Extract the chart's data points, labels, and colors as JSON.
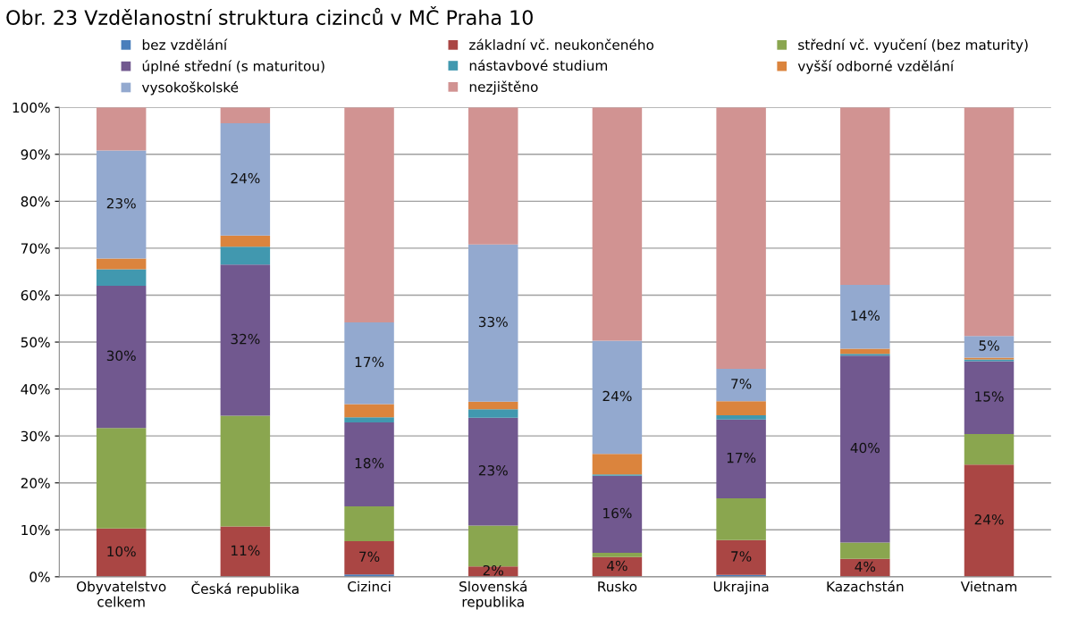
{
  "chart_data": {
    "type": "bar",
    "stacked": true,
    "title": "Obr. 23 Vzdělanostní struktura cizinců v MČ Praha 10",
    "categories": [
      "Obyvatelstvo\ncelkem",
      "Česká republika",
      "Cizinci",
      "Slovenská\nrepublika",
      "Rusko",
      "Ukrajina",
      "Kazachstán",
      "Vietnam"
    ],
    "series": [
      {
        "name": "bez vzdělání",
        "color": "#4a7ebb",
        "values": [
          0,
          0,
          0.5,
          0,
          0,
          0.4,
          0,
          0
        ],
        "value_labels": [
          null,
          null,
          null,
          null,
          null,
          null,
          null,
          null
        ]
      },
      {
        "name": "základní vč. neukončeného",
        "color": "#aa4644",
        "values": [
          10.3,
          10.7,
          7.1,
          2.2,
          4.2,
          7.4,
          3.8,
          23.9
        ],
        "value_labels": [
          "10%",
          "11%",
          "7%",
          "2%",
          "4%",
          "7%",
          "4%",
          "24%"
        ]
      },
      {
        "name": "střední vč. vyučení (bez maturity)",
        "color": "#8aa64f",
        "values": [
          21.4,
          23.6,
          7.4,
          8.7,
          0.9,
          8.9,
          3.5,
          6.5
        ],
        "value_labels": [
          null,
          null,
          null,
          null,
          null,
          null,
          null,
          null
        ]
      },
      {
        "name": "úplné střední (s maturitou)",
        "color": "#71588f",
        "values": [
          30.3,
          32.2,
          17.9,
          23.0,
          16.4,
          16.8,
          39.8,
          15.5
        ],
        "value_labels": [
          "30%",
          "32%",
          "18%",
          "23%",
          "16%",
          "17%",
          "40%",
          "15%"
        ]
      },
      {
        "name": "nástavbové studium",
        "color": "#4198af",
        "values": [
          3.5,
          3.8,
          1.1,
          1.8,
          0.3,
          0.9,
          0.4,
          0.4
        ],
        "value_labels": [
          null,
          null,
          null,
          null,
          null,
          null,
          null,
          null
        ]
      },
      {
        "name": "vyšší odborné vzdělání",
        "color": "#db843d",
        "values": [
          2.3,
          2.4,
          2.8,
          1.6,
          4.4,
          3.0,
          1.1,
          0.4
        ],
        "value_labels": [
          null,
          null,
          null,
          null,
          null,
          null,
          null,
          null
        ]
      },
      {
        "name": "vysokoškolské",
        "color": "#93a9cf",
        "values": [
          23.0,
          23.9,
          17.4,
          33.5,
          24.1,
          6.9,
          13.6,
          4.6
        ],
        "value_labels": [
          "23%",
          "24%",
          "17%",
          "33%",
          "24%",
          "7%",
          "14%",
          "5%"
        ]
      },
      {
        "name": "nezjištěno",
        "color": "#d19392",
        "values": [
          9.2,
          3.4,
          45.8,
          29.2,
          49.7,
          55.7,
          37.8,
          48.7
        ],
        "value_labels": [
          null,
          null,
          null,
          null,
          null,
          null,
          null,
          null
        ]
      }
    ],
    "ylim": [
      0,
      100
    ],
    "yticks": [
      {
        "value": 0,
        "label": "0%"
      },
      {
        "value": 10,
        "label": "10%"
      },
      {
        "value": 20,
        "label": "20%"
      },
      {
        "value": 30,
        "label": "30%"
      },
      {
        "value": 40,
        "label": "40%"
      },
      {
        "value": 50,
        "label": "50%"
      },
      {
        "value": 60,
        "label": "60%"
      },
      {
        "value": 70,
        "label": "70%"
      },
      {
        "value": 80,
        "label": "80%"
      },
      {
        "value": 90,
        "label": "90%"
      },
      {
        "value": 100,
        "label": "100%"
      }
    ],
    "grid": "y",
    "legend": "top"
  }
}
